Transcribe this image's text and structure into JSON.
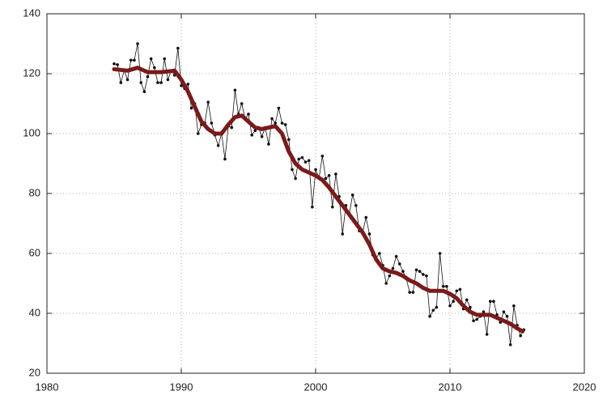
{
  "chart_data": {
    "type": "line",
    "x": [
      1985,
      1985.25,
      1985.5,
      1985.75,
      1986,
      1986.25,
      1986.5,
      1986.75,
      1987,
      1987.25,
      1987.5,
      1987.75,
      1988,
      1988.25,
      1988.5,
      1988.75,
      1989,
      1989.25,
      1989.5,
      1989.75,
      1990,
      1990.25,
      1990.5,
      1990.75,
      1991,
      1991.25,
      1991.5,
      1991.75,
      1992,
      1992.25,
      1992.5,
      1992.75,
      1993,
      1993.25,
      1993.5,
      1993.75,
      1994,
      1994.25,
      1994.5,
      1994.75,
      1995,
      1995.25,
      1995.5,
      1995.75,
      1996,
      1996.25,
      1996.5,
      1996.75,
      1997,
      1997.25,
      1997.5,
      1997.75,
      1998,
      1998.25,
      1998.5,
      1998.75,
      1999,
      1999.25,
      1999.5,
      1999.75,
      2000,
      2000.25,
      2000.5,
      2000.75,
      2001,
      2001.25,
      2001.5,
      2001.75,
      2002,
      2002.25,
      2002.5,
      2002.75,
      2003,
      2003.25,
      2003.5,
      2003.75,
      2004,
      2004.25,
      2004.5,
      2004.75,
      2005,
      2005.25,
      2005.5,
      2005.75,
      2006,
      2006.25,
      2006.5,
      2006.75,
      2007,
      2007.25,
      2007.5,
      2007.75,
      2008,
      2008.25,
      2008.5,
      2008.75,
      2009,
      2009.25,
      2009.5,
      2009.75,
      2010,
      2010.25,
      2010.5,
      2010.75,
      2011,
      2011.25,
      2011.5,
      2011.75,
      2012,
      2012.25,
      2012.5,
      2012.75,
      2013,
      2013.25,
      2013.5,
      2013.75,
      2014,
      2014.25,
      2014.5,
      2014.75,
      2015,
      2015.25,
      2015.5
    ],
    "series": [
      {
        "color": "#111111",
        "values": [
          123.3,
          123,
          117,
          121,
          118,
          124.5,
          124.5,
          130,
          117,
          114,
          119,
          125,
          122,
          117,
          117,
          125,
          118,
          121,
          119.5,
          128.5,
          116,
          115,
          116.5,
          108.5,
          110,
          100,
          103,
          103.5,
          110.5,
          103.5,
          99.5,
          96,
          100,
          91.5,
          102.5,
          102,
          114.5,
          106.5,
          110,
          105,
          106.5,
          99.5,
          101,
          102,
          99,
          102,
          96.5,
          105,
          103.5,
          108.5,
          103.5,
          103,
          98,
          88,
          85,
          91.5,
          92,
          90.5,
          91,
          75.5,
          88,
          85,
          92.5,
          85,
          86,
          75.5,
          86.5,
          79,
          66.5,
          76,
          73,
          79.5,
          76,
          67.5,
          67,
          72,
          66.5,
          59.5,
          58.5,
          60,
          56,
          50,
          52.5,
          55,
          59,
          56.5,
          54,
          51.5,
          47,
          47,
          54.5,
          54,
          53,
          52.5,
          39,
          41,
          42,
          60,
          49,
          49,
          42.5,
          44,
          47.5,
          48,
          41.5,
          44.5,
          42,
          37.5,
          38,
          39,
          40.5,
          33,
          44,
          44,
          39.5,
          37,
          40.5,
          39,
          29.5,
          42.5,
          36,
          32.5,
          34.5
        ]
      },
      {
        "color": "#7b1a1a",
        "x": [
          1985,
          1986,
          1986.75,
          1987.5,
          1988.5,
          1989.5,
          1990,
          1990.5,
          1991,
          1991.5,
          1992,
          1992.5,
          1993,
          1993.5,
          1994,
          1994.5,
          1995,
          1995.5,
          1996,
          1996.5,
          1997,
          1997.5,
          1998,
          1998.5,
          1999,
          1999.5,
          2000,
          2000.5,
          2001,
          2001.5,
          2002,
          2002.5,
          2003,
          2003.5,
          2004,
          2004.5,
          2005,
          2005.5,
          2006,
          2006.5,
          2007,
          2007.5,
          2008,
          2008.5,
          2009,
          2009.5,
          2010,
          2010.5,
          2011,
          2011.5,
          2012,
          2012.5,
          2013,
          2013.5,
          2014,
          2014.5,
          2015,
          2015.4
        ],
        "values": [
          121.5,
          121,
          122,
          120.5,
          120.5,
          121,
          118,
          114,
          109,
          104,
          101.5,
          100,
          100,
          103,
          105.5,
          106,
          104,
          102,
          101.5,
          102,
          102.5,
          100,
          94,
          90,
          88,
          87,
          86,
          84.5,
          82,
          79,
          76,
          73,
          70,
          67,
          63,
          58,
          55,
          54,
          53.5,
          52.5,
          51,
          50,
          48.5,
          47.5,
          47.5,
          47.5,
          46.5,
          45,
          42.5,
          40.5,
          39.5,
          39.5,
          39.5,
          38.5,
          37.5,
          36.5,
          35,
          34
        ]
      }
    ],
    "xlim": [
      1980,
      2020
    ],
    "xticks": [
      1980,
      1990,
      2000,
      2010,
      2020
    ],
    "ylim": [
      20,
      140
    ],
    "yticks": [
      20,
      40,
      60,
      80,
      100,
      120,
      140
    ],
    "grid": true
  }
}
